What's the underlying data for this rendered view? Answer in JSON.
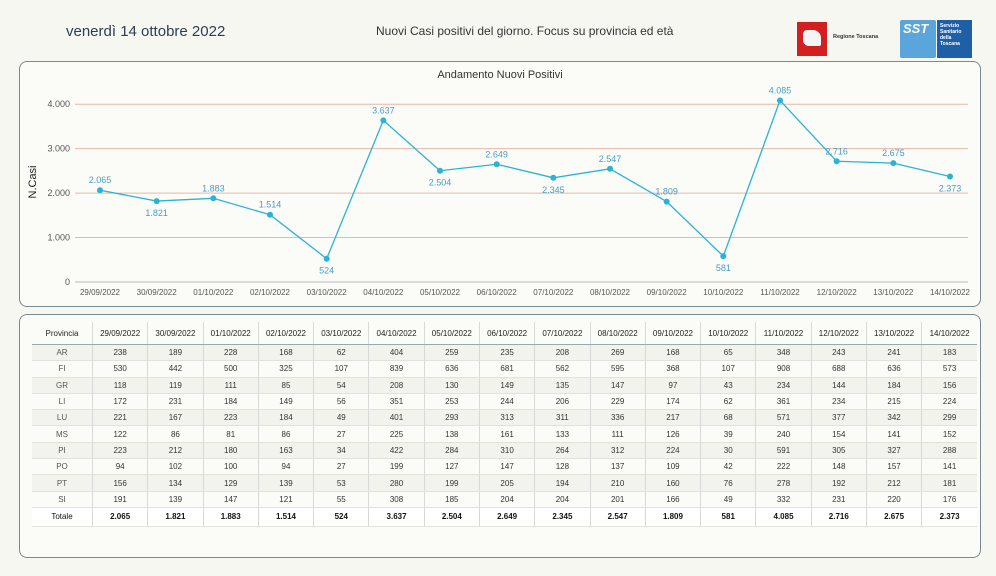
{
  "header": {
    "date": "venerdì 14 ottobre 2022",
    "subtitle": "Nuovi Casi positivi del giorno. Focus su provincia ed età",
    "logo_regione": "Regione Toscana",
    "logo_sst": "SST",
    "logo_sst_text": "Servizio Sanitario della Toscana"
  },
  "chart_data": {
    "type": "line",
    "title": "Andamento Nuovi Positivi",
    "ylabel": "N.Casi",
    "xlabel": "",
    "ylim": [
      0,
      4500
    ],
    "yticks": [
      0,
      1000,
      2000,
      3000,
      4000
    ],
    "ytick_labels": [
      "0",
      "1.000",
      "2.000",
      "3.000",
      "4.000"
    ],
    "categories": [
      "29/09/2022",
      "30/09/2022",
      "01/10/2022",
      "02/10/2022",
      "03/10/2022",
      "04/10/2022",
      "05/10/2022",
      "06/10/2022",
      "07/10/2022",
      "08/10/2022",
      "09/10/2022",
      "10/10/2022",
      "11/10/2022",
      "12/10/2022",
      "13/10/2022",
      "14/10/2022"
    ],
    "values": [
      2065,
      1821,
      1883,
      1514,
      524,
      3637,
      2504,
      2649,
      2345,
      2547,
      1809,
      581,
      4085,
      2716,
      2675,
      2373
    ],
    "data_labels": [
      "2.065",
      "1.821",
      "1.883",
      "1.514",
      "524",
      "3.637",
      "2.504",
      "2.649",
      "2.345",
      "2.547",
      "1.809",
      "581",
      "4.085",
      "2.716",
      "2.675",
      "2.373"
    ],
    "label_positions": [
      "above",
      "below",
      "above",
      "above",
      "below",
      "above",
      "below",
      "above",
      "below",
      "above",
      "above",
      "below",
      "above",
      "above",
      "above",
      "below"
    ],
    "line_color": "#2ab3d6",
    "grid_color": "#e8b8a8",
    "label_color": "#4a9ec4"
  },
  "table": {
    "header_label": "Provincia",
    "dates": [
      "29/09/2022",
      "30/09/2022",
      "01/10/2022",
      "02/10/2022",
      "03/10/2022",
      "04/10/2022",
      "05/10/2022",
      "06/10/2022",
      "07/10/2022",
      "08/10/2022",
      "09/10/2022",
      "10/10/2022",
      "11/10/2022",
      "12/10/2022",
      "13/10/2022",
      "14/10/2022"
    ],
    "rows": [
      {
        "provincia": "AR",
        "values": [
          "238",
          "189",
          "228",
          "168",
          "62",
          "404",
          "259",
          "235",
          "208",
          "269",
          "168",
          "65",
          "348",
          "243",
          "241",
          "183"
        ]
      },
      {
        "provincia": "FI",
        "values": [
          "530",
          "442",
          "500",
          "325",
          "107",
          "839",
          "636",
          "681",
          "562",
          "595",
          "368",
          "107",
          "908",
          "688",
          "636",
          "573"
        ]
      },
      {
        "provincia": "GR",
        "values": [
          "118",
          "119",
          "111",
          "85",
          "54",
          "208",
          "130",
          "149",
          "135",
          "147",
          "97",
          "43",
          "234",
          "144",
          "184",
          "156"
        ]
      },
      {
        "provincia": "LI",
        "values": [
          "172",
          "231",
          "184",
          "149",
          "56",
          "351",
          "253",
          "244",
          "206",
          "229",
          "174",
          "62",
          "361",
          "234",
          "215",
          "224"
        ]
      },
      {
        "provincia": "LU",
        "values": [
          "221",
          "167",
          "223",
          "184",
          "49",
          "401",
          "293",
          "313",
          "311",
          "336",
          "217",
          "68",
          "571",
          "377",
          "342",
          "299"
        ]
      },
      {
        "provincia": "MS",
        "values": [
          "122",
          "86",
          "81",
          "86",
          "27",
          "225",
          "138",
          "161",
          "133",
          "111",
          "126",
          "39",
          "240",
          "154",
          "141",
          "152"
        ]
      },
      {
        "provincia": "PI",
        "values": [
          "223",
          "212",
          "180",
          "163",
          "34",
          "422",
          "284",
          "310",
          "264",
          "312",
          "224",
          "30",
          "591",
          "305",
          "327",
          "288"
        ]
      },
      {
        "provincia": "PO",
        "values": [
          "94",
          "102",
          "100",
          "94",
          "27",
          "199",
          "127",
          "147",
          "128",
          "137",
          "109",
          "42",
          "222",
          "148",
          "157",
          "141"
        ]
      },
      {
        "provincia": "PT",
        "values": [
          "156",
          "134",
          "129",
          "139",
          "53",
          "280",
          "199",
          "205",
          "194",
          "210",
          "160",
          "76",
          "278",
          "192",
          "212",
          "181"
        ]
      },
      {
        "provincia": "SI",
        "values": [
          "191",
          "139",
          "147",
          "121",
          "55",
          "308",
          "185",
          "204",
          "204",
          "201",
          "166",
          "49",
          "332",
          "231",
          "220",
          "176"
        ]
      }
    ],
    "total_label": "Totale",
    "totals": [
      "2.065",
      "1.821",
      "1.883",
      "1.514",
      "524",
      "3.637",
      "2.504",
      "2.649",
      "2.345",
      "2.547",
      "1.809",
      "581",
      "4.085",
      "2.716",
      "2.675",
      "2.373"
    ]
  }
}
